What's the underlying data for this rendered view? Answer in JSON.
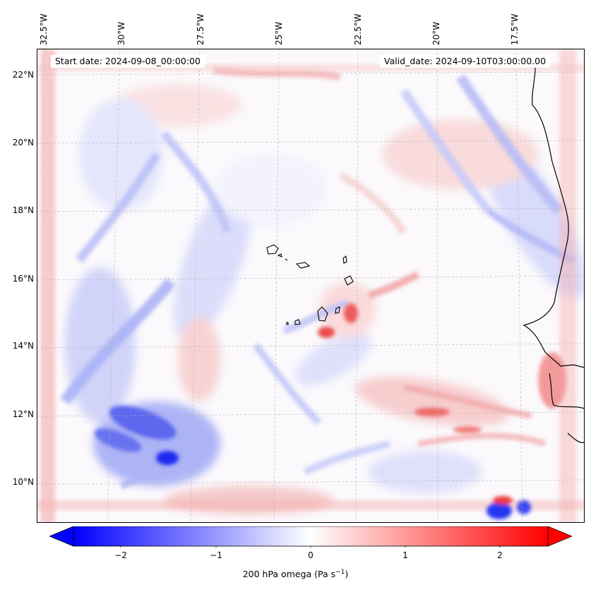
{
  "map": {
    "lon_labels": [
      "32.5°W",
      "30°W",
      "27.5°W",
      "25°W",
      "22.5°W",
      "20°W",
      "17.5°W"
    ],
    "lat_labels": [
      "22°N",
      "20°N",
      "18°N",
      "16°N",
      "14°N",
      "12°N",
      "10°N"
    ],
    "start_date": "Start date: 2024-09-08_00:00:00",
    "valid_date": "Valid_date: 2024-09-10T03:00:00.00"
  },
  "colorbar": {
    "ticks": [
      "−2",
      "−1",
      "0",
      "1",
      "2"
    ],
    "label_main": "200 hPa omega (Pa s",
    "label_exp": "−1",
    "label_close": ")",
    "range": [
      -2.5,
      2.5
    ],
    "colors": {
      "negative": "#0000ff",
      "zero": "#ffffff",
      "positive": "#ff0000"
    }
  }
}
